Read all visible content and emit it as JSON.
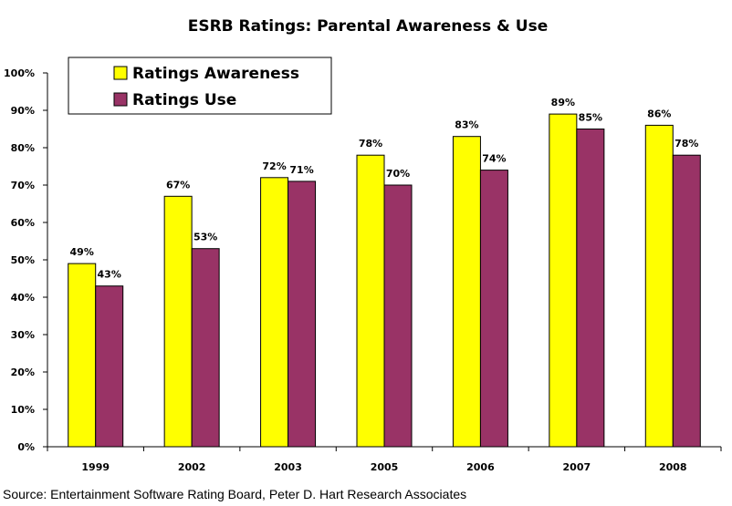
{
  "chart_data": {
    "type": "bar",
    "title": "ESRB Ratings: Parental Awareness & Use",
    "xlabel": "",
    "ylabel": "",
    "categories": [
      "1999",
      "2002",
      "2003",
      "2005",
      "2006",
      "2007",
      "2008"
    ],
    "series": [
      {
        "name": "Ratings Awareness",
        "color": "#FFFF00",
        "values": [
          49,
          67,
          72,
          78,
          83,
          89,
          86
        ]
      },
      {
        "name": "Ratings Use",
        "color": "#993366",
        "values": [
          43,
          53,
          71,
          70,
          74,
          85,
          78
        ]
      }
    ],
    "ylim": [
      0,
      100
    ],
    "yticks": [
      0,
      10,
      20,
      30,
      40,
      50,
      60,
      70,
      80,
      90,
      100
    ],
    "ytick_format": "%",
    "grid": false,
    "legend": {
      "placement": "top-left",
      "entries": [
        "Ratings Awareness",
        "Ratings Use"
      ]
    },
    "data_labels": true,
    "source": "Source: Entertainment Software Rating Board, Peter D. Hart Research Associates"
  }
}
